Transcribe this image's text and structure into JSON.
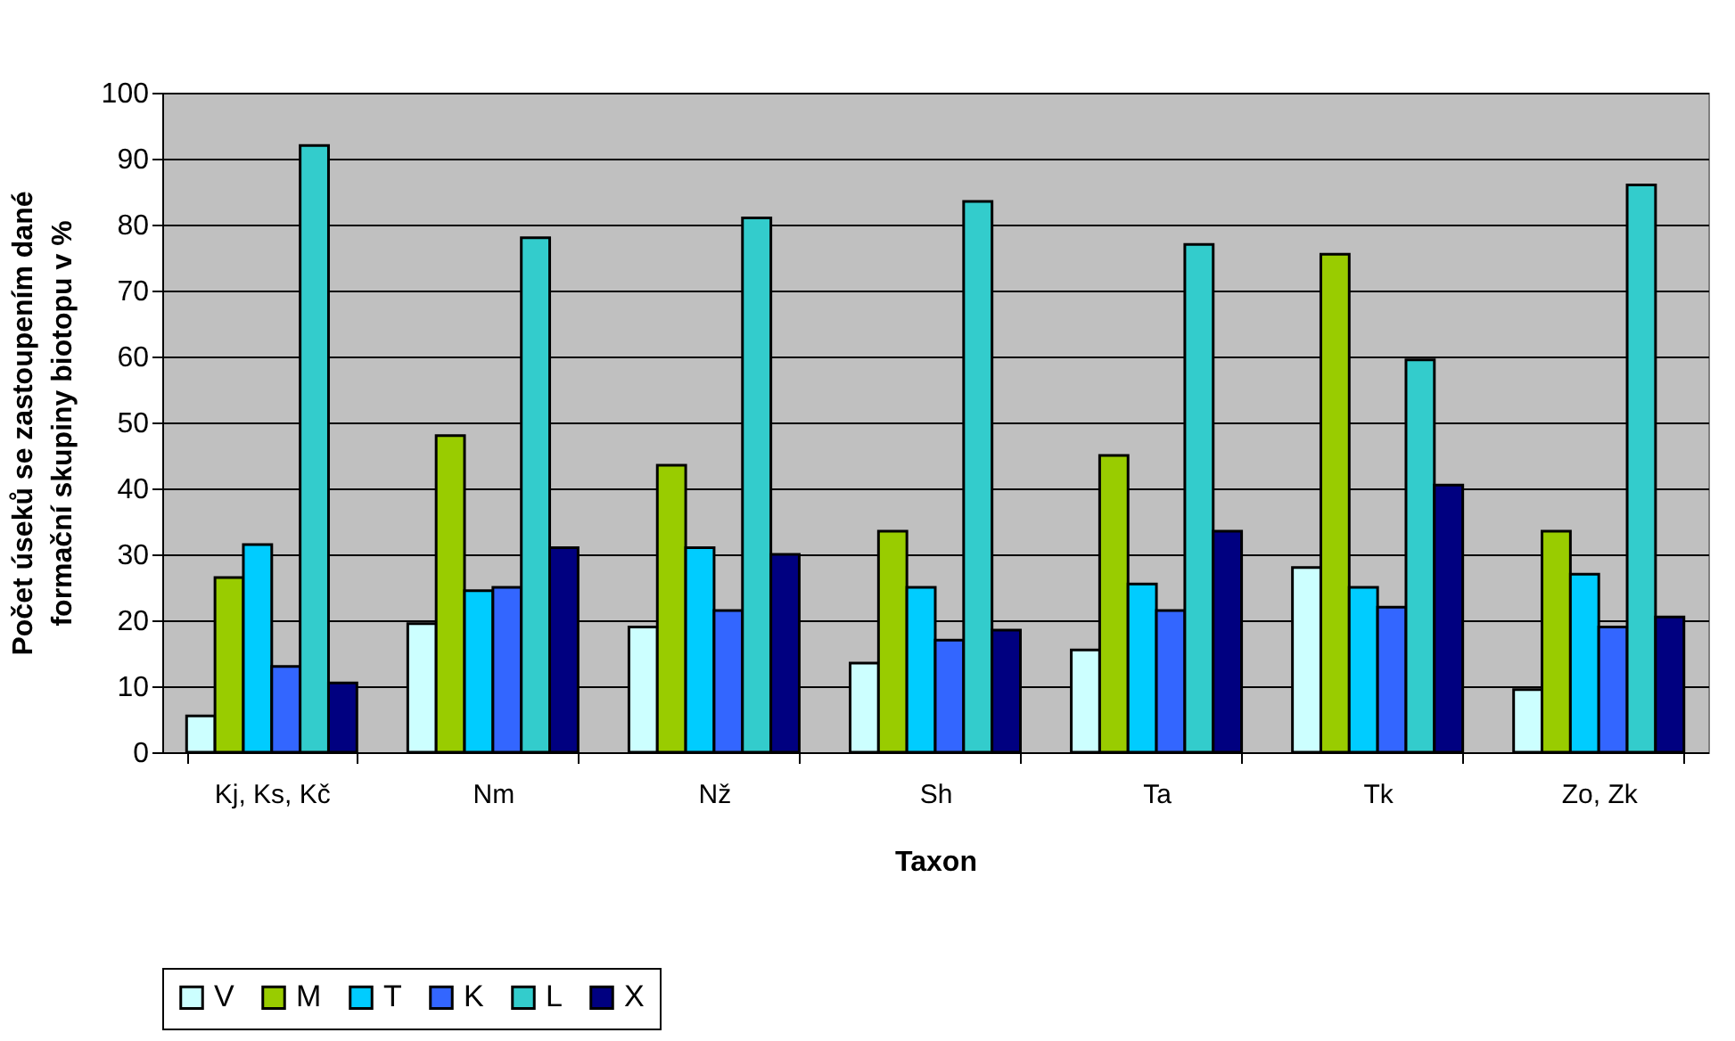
{
  "chart_data": {
    "type": "bar",
    "xlabel": "Taxon",
    "ylabel": "Počet úseků se zastoupením dané\nformační skupiny biotopu v %",
    "categories": [
      "Kj, Ks, Kč",
      "Nm",
      "Nž",
      "Sh",
      "Ta",
      "Tk",
      "Zo, Zk"
    ],
    "series": [
      {
        "name": "V",
        "color": "#ccffff",
        "values": [
          5.5,
          19.5,
          19,
          13.5,
          15.5,
          28,
          9.5
        ]
      },
      {
        "name": "M",
        "color": "#99cc00",
        "values": [
          26.5,
          48,
          43.5,
          33.5,
          45,
          75.5,
          33.5
        ]
      },
      {
        "name": "T",
        "color": "#00ccff",
        "values": [
          31.5,
          24.5,
          31,
          25,
          25.5,
          25,
          27
        ]
      },
      {
        "name": "K",
        "color": "#3366ff",
        "values": [
          13,
          25,
          21.5,
          17,
          21.5,
          22,
          19
        ]
      },
      {
        "name": "L",
        "color": "#33cccc",
        "values": [
          92,
          78,
          81,
          83.5,
          77,
          59.5,
          86
        ]
      },
      {
        "name": "X",
        "color": "#000080",
        "values": [
          10.5,
          31,
          30,
          18.5,
          33.5,
          40.5,
          20.5
        ]
      }
    ],
    "ylim": [
      0,
      100
    ],
    "yticks": [
      0,
      10,
      20,
      30,
      40,
      50,
      60,
      70,
      80,
      90,
      100
    ],
    "grid": "y",
    "legend": "bottom"
  }
}
